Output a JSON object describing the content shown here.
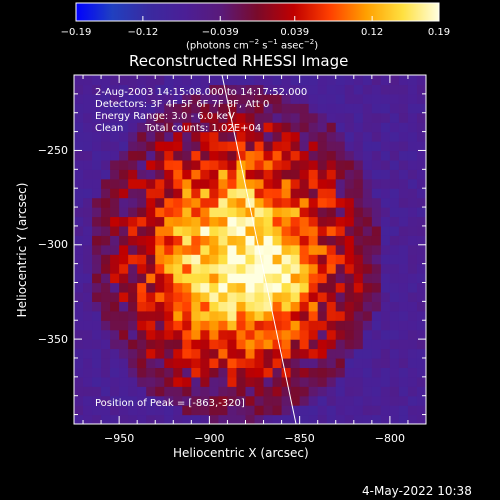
{
  "chart_data": {
    "type": "heatmap",
    "title": "Reconstructed RHESSI Image",
    "xlabel": "Heliocentric X (arcsec)",
    "ylabel": "Heliocentric Y (arcsec)",
    "xlim": [
      -975,
      -780
    ],
    "ylim": [
      -395,
      -210
    ],
    "xticks": [
      -950,
      -900,
      -850,
      -800
    ],
    "yticks": [
      -250,
      -300,
      -350
    ],
    "colorbar": {
      "range": [
        -0.19,
        0.19
      ],
      "tick_values": [
        -0.19,
        -0.12,
        -0.039,
        0.039,
        0.12,
        0.19
      ],
      "tick_labels": [
        "−0.19",
        "−0.12",
        "−0.039",
        "0.039",
        "0.12",
        "0.19"
      ],
      "unit_label_parts": [
        "(photons cm",
        "−2",
        " s",
        "−1",
        " asec",
        "−2",
        ")"
      ]
    },
    "annotations": {
      "time_range": "2-Aug-2003 14:15:08.000 to 14:17:52.000",
      "detectors": "Detectors: 3F 4F 5F 6F 7F 8F, Att 0",
      "energy_range": "Energy Range: 3.0 - 6.0 keV",
      "clean": "Clean",
      "total_counts": "Total counts: 1.02E+04",
      "peak_position": "Position of Peak = [-863,-320]"
    },
    "peak": [
      -863,
      -320
    ],
    "limb_line": [
      [
        -893,
        -210
      ],
      [
        -852,
        -395
      ]
    ],
    "colors": {
      "colorbar_stops": [
        "#0000ff",
        "#2040c0",
        "#3a2aa0",
        "#4b1f96",
        "#5a1a7a",
        "#7a0a2a",
        "#c00000",
        "#ff4000",
        "#ffa000",
        "#ffe040",
        "#ffffe0"
      ]
    }
  },
  "footer": {
    "date": "4-May-2022 10:38"
  }
}
